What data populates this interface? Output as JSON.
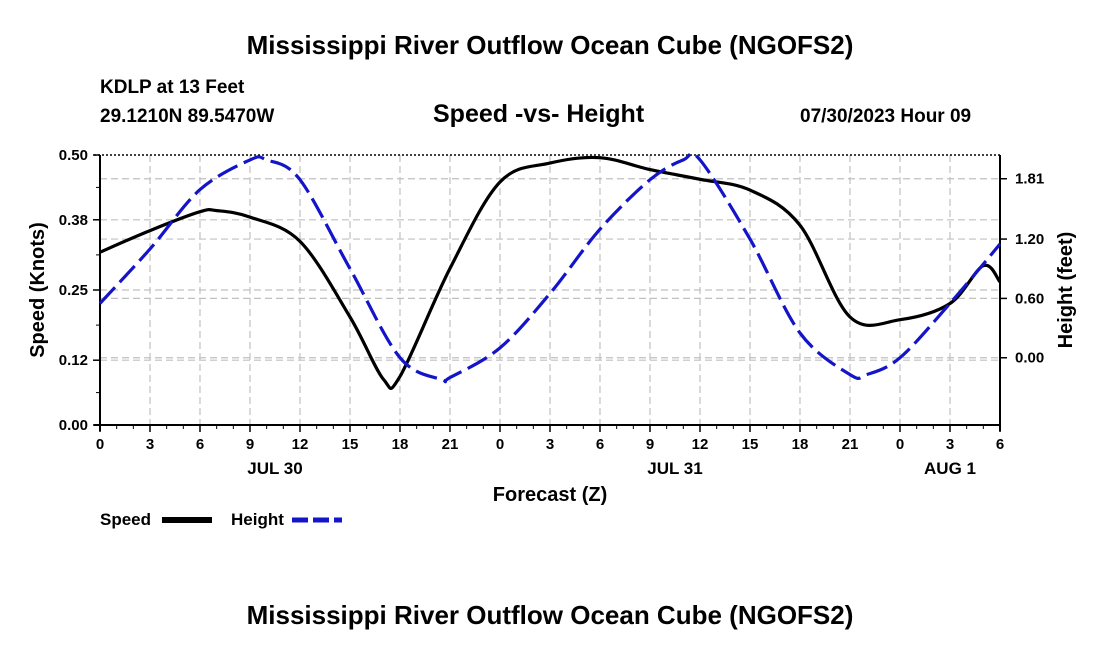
{
  "header": {
    "title": "Mississippi River Outflow Ocean Cube (NGOFS2)",
    "station": "KDLP at 13 Feet",
    "coords": "29.1210N  89.5470W",
    "subtitle": "Speed -vs- Height",
    "datetime": "07/30/2023 Hour 09"
  },
  "footer": {
    "title": "Mississippi River Outflow Ocean Cube (NGOFS2)"
  },
  "legend": {
    "speed_label": "Speed",
    "height_label": "Height"
  },
  "colors": {
    "speed": "#000000",
    "height": "#1414c8",
    "grid": "#c0c0c0"
  },
  "chart_data": {
    "type": "line",
    "title": "Speed -vs- Height",
    "xlabel": "Forecast (Z)",
    "ylabel": "Speed (Knots)",
    "y2label": "Height (feet)",
    "x_unit": "hours from Jul 30 00Z",
    "xlim": [
      0,
      54
    ],
    "ylim": [
      0,
      0.5
    ],
    "y2lim": [
      -0.68,
      2.05
    ],
    "x_ticks": [
      0,
      3,
      6,
      9,
      12,
      15,
      18,
      21,
      24,
      27,
      30,
      33,
      36,
      39,
      42,
      45,
      48,
      51,
      54
    ],
    "x_tick_labels": [
      "0",
      "3",
      "6",
      "9",
      "12",
      "15",
      "18",
      "21",
      "0",
      "3",
      "6",
      "9",
      "12",
      "15",
      "18",
      "21",
      "0",
      "3",
      "6"
    ],
    "date_labels": [
      {
        "x": 10.5,
        "label": "JUL 30"
      },
      {
        "x": 34.5,
        "label": "JUL 31"
      },
      {
        "x": 51.0,
        "label": "AUG 1"
      }
    ],
    "y_ticks": [
      0.0,
      0.12,
      0.25,
      0.38,
      0.5
    ],
    "y_tick_labels": [
      "0.00",
      "0.12",
      "0.25",
      "0.38",
      "0.50"
    ],
    "y2_ticks": [
      0.0,
      0.6,
      1.2,
      1.81
    ],
    "y2_tick_labels": [
      "0.00",
      "0.60",
      "1.20",
      "1.81"
    ],
    "grid": true,
    "legend_position": "bottom-left",
    "series": [
      {
        "name": "Speed",
        "axis": "left",
        "style": "solid",
        "x": [
          0,
          3,
          6,
          7,
          9,
          12,
          15,
          17,
          18,
          21,
          24,
          27,
          30,
          33,
          36,
          39,
          42,
          45,
          48,
          51,
          53,
          54
        ],
        "values": [
          0.32,
          0.36,
          0.395,
          0.397,
          0.385,
          0.34,
          0.2,
          0.085,
          0.09,
          0.29,
          0.45,
          0.485,
          0.495,
          0.473,
          0.455,
          0.435,
          0.37,
          0.2,
          0.195,
          0.225,
          0.295,
          0.265
        ]
      },
      {
        "name": "Height",
        "axis": "right",
        "style": "dashed",
        "x": [
          0,
          3,
          6,
          9,
          10,
          12,
          15,
          18,
          20.5,
          21,
          24,
          27,
          30,
          33,
          35,
          36,
          39,
          42,
          45,
          46,
          48,
          51,
          54
        ],
        "values": [
          0.55,
          1.1,
          1.7,
          2.0,
          2.0,
          1.8,
          0.9,
          0.0,
          -0.22,
          -0.2,
          0.1,
          0.65,
          1.3,
          1.8,
          2.0,
          2.0,
          1.2,
          0.25,
          -0.17,
          -0.17,
          0.0,
          0.55,
          1.15
        ]
      }
    ]
  }
}
